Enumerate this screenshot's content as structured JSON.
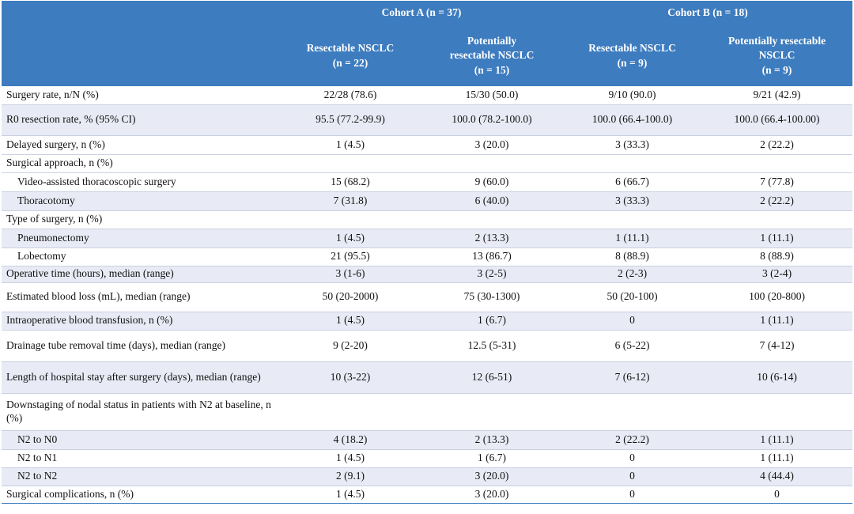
{
  "header": {
    "cohorts": [
      "Cohort A (n = 37)",
      "Cohort B (n = 18)"
    ],
    "groups": [
      "Resectable NSCLC\n(n = 22)",
      "Potentially\nresectable NSCLC\n(n = 15)",
      "Resectable NSCLC\n(n = 9)",
      "Potentially resectable\nNSCLC\n(n = 9)"
    ]
  },
  "table": {
    "rows": [
      [
        "Surgery rate, n/N (%)",
        "22/28 (78.6)",
        "15/30 (50.0)",
        "9/10 (90.0)",
        "9/21 (42.9)"
      ],
      [
        "R0 resection rate, % (95% CI)",
        "95.5 (77.2-99.9)",
        "100.0 (78.2-100.0)",
        "100.0 (66.4-100.0)",
        "100.0 (66.4-100.00)"
      ],
      [
        "Delayed surgery, n (%)",
        "1 (4.5)",
        "3 (20.0)",
        "3 (33.3)",
        "2 (22.2)"
      ],
      [
        "Surgical approach, n (%)"
      ],
      [
        "Video-assisted thoracoscopic surgery",
        "15 (68.2)",
        "9 (60.0)",
        "6 (66.7)",
        "7 (77.8)"
      ],
      [
        "Thoracotomy",
        "7 (31.8)",
        "6 (40.0)",
        "3 (33.3)",
        "2 (22.2)"
      ],
      [
        "Type of surgery, n (%)"
      ],
      [
        "Pneumonectomy",
        "1 (4.5)",
        "2 (13.3)",
        "1 (11.1)",
        "1 (11.1)"
      ],
      [
        "Lobectomy",
        "21 (95.5)",
        "13 (86.7)",
        "8 (88.9)",
        "8 (88.9)"
      ],
      [
        "Operative time (hours), median (range)",
        "3 (1-6)",
        "3 (2-5)",
        "2 (2-3)",
        "3 (2-4)"
      ],
      [
        "Estimated blood loss (mL), median (range)",
        "50 (20-2000)",
        "75 (30-1300)",
        "50 (20-100)",
        "100 (20-800)"
      ],
      [
        "Intraoperative blood transfusion, n (%)",
        "1 (4.5)",
        "1 (6.7)",
        "0",
        "1 (11.1)"
      ],
      [
        "Drainage tube removal time (days), median (range)",
        "9 (2-20)",
        "12.5 (5-31)",
        "6 (5-22)",
        "7 (4-12)"
      ],
      [
        "Length of hospital stay after surgery (days), median (range)",
        "10 (3-22)",
        "12 (6-51)",
        "7 (6-12)",
        "10 (6-14)"
      ],
      [
        "Downstaging of nodal status in patients with N2 at baseline, n (%)"
      ],
      [
        "N2 to N0",
        "4 (18.2)",
        "2 (13.3)",
        "2 (22.2)",
        "1 (11.1)"
      ],
      [
        "N2 to N1",
        "1 (4.5)",
        "1 (6.7)",
        "0",
        "1 (11.1)"
      ],
      [
        "N2 to N2",
        "2 (9.1)",
        "3 (20.0)",
        "0",
        "4 (44.4)"
      ],
      [
        "Surgical complications, n (%)",
        "1 (4.5)",
        "3 (20.0)",
        "0",
        "0"
      ]
    ]
  }
}
